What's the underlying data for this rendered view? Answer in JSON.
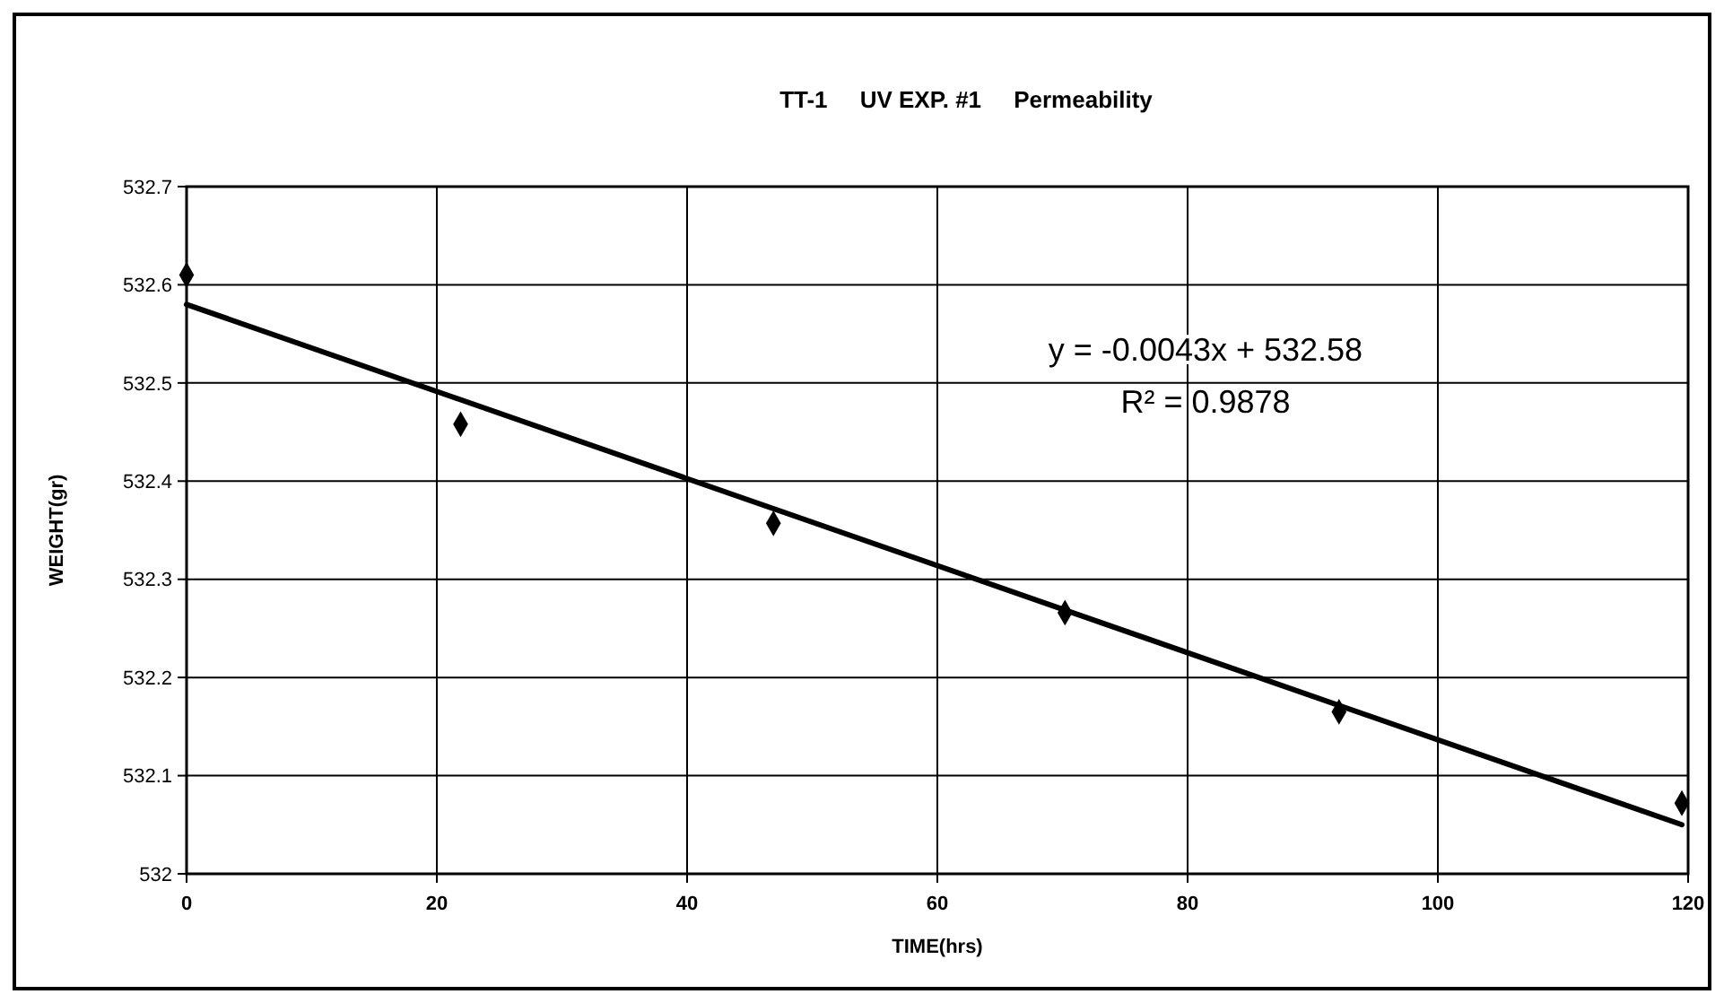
{
  "chart_data": {
    "type": "scatter",
    "title": "TT-1     UV EXP. #1     Permeability",
    "xlabel": "TIME(hrs)",
    "ylabel": "WEIGHT(gr)",
    "x": [
      0,
      21.9,
      46.9,
      70.2,
      92.1,
      119.5
    ],
    "series": [
      {
        "color": "#000000",
        "marker": "diamond",
        "values": [
          532.61,
          532.458,
          532.357,
          532.266,
          532.165,
          532.072
        ]
      },
      {
        "type": "line",
        "color": "#000000",
        "line_style": "solid",
        "marker": "none",
        "x": [
          0,
          119.5
        ],
        "values": [
          532.58,
          532.05
        ]
      }
    ],
    "annotations": [
      "y = -0.0043x + 532.58",
      "R² = 0.9878"
    ],
    "xlim": [
      0,
      120
    ],
    "xticks": [
      0,
      20,
      40,
      60,
      80,
      100,
      120
    ],
    "ylim": [
      532,
      532.7
    ],
    "yticks": [
      532,
      532.1,
      532.2,
      532.3,
      532.4,
      532.5,
      532.6,
      532.7
    ],
    "grid": true
  }
}
